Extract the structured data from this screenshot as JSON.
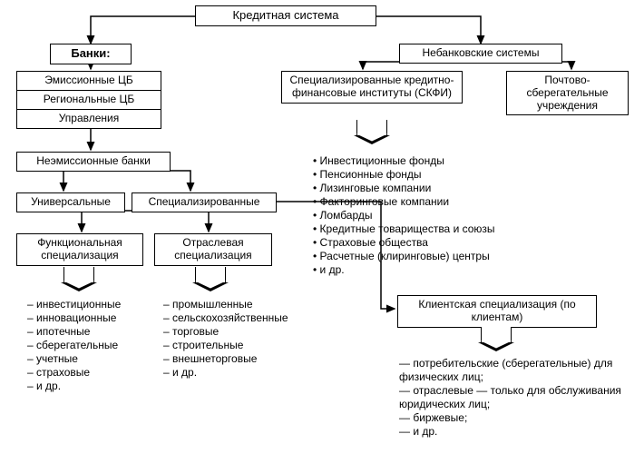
{
  "type": "flowchart",
  "background_color": "#ffffff",
  "line_color": "#000000",
  "font_family": "Arial",
  "nodes": {
    "root": {
      "label": "Кредитная система",
      "fontsize": 13
    },
    "banks": {
      "label": "Банки:",
      "fontsize": 13,
      "bold": true
    },
    "nonbank": {
      "label": "Небанковские системы",
      "fontsize": 12
    },
    "emiss": {
      "label": "Эмиссионные ЦБ",
      "fontsize": 12
    },
    "region": {
      "label": "Региональные ЦБ",
      "fontsize": 12
    },
    "manage": {
      "label": "Управления",
      "fontsize": 12
    },
    "skfi": {
      "label": "Специализированные кредитно-финансовые институты (СКФИ)",
      "fontsize": 12
    },
    "postal": {
      "label": "Почтово-сберегательные учреждения",
      "fontsize": 12
    },
    "noemiss": {
      "label": "Неэмиссионные банки",
      "fontsize": 12
    },
    "univ": {
      "label": "Универсальные",
      "fontsize": 12
    },
    "spec": {
      "label": "Специализированные",
      "fontsize": 12
    },
    "func": {
      "label": "Функциональная специализация",
      "fontsize": 12
    },
    "branch": {
      "label": "Отраслевая специализация",
      "fontsize": 12
    },
    "client": {
      "label": "Клиентская специализация (по клиентам)",
      "fontsize": 12
    }
  },
  "lists": {
    "skfi_items": [
      "Инвестиционные фонды",
      "Пенсионные фонды",
      "Лизинговые компании",
      "Факторинговые компании",
      "Ломбарды",
      "Кредитные товарищества и союзы",
      "Страховые общества",
      "Расчетные (клиринговые) центры",
      "и др."
    ],
    "func_items": [
      "инвестиционные",
      "инновационные",
      "ипотечные",
      "сберегательные",
      "учетные",
      "страховые",
      "и др."
    ],
    "branch_items": [
      "промышленные",
      "сельскохозяйственные",
      "торговые",
      "строительные",
      "внешнеторговые",
      "и др."
    ],
    "client_items": [
      "потребительские (сберегательные) для физических лиц;",
      "отраслевые — только для обслуживания юридических лиц;",
      "биржевые;",
      "и др."
    ]
  },
  "list_fontsize": 12
}
